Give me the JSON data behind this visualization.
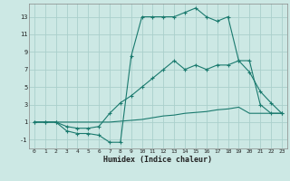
{
  "xlabel": "Humidex (Indice chaleur)",
  "bg_color": "#cce8e4",
  "grid_color": "#aacfcb",
  "line_color": "#1a7a6e",
  "xlim": [
    -0.5,
    23.5
  ],
  "ylim": [
    -2.0,
    14.5
  ],
  "xticks": [
    0,
    1,
    2,
    3,
    4,
    5,
    6,
    7,
    8,
    9,
    10,
    11,
    12,
    13,
    14,
    15,
    16,
    17,
    18,
    19,
    20,
    21,
    22,
    23
  ],
  "yticks": [
    -1,
    1,
    3,
    5,
    7,
    9,
    11,
    13
  ],
  "line1_x": [
    0,
    1,
    2,
    3,
    4,
    5,
    6,
    7,
    8,
    9,
    10,
    11,
    12,
    13,
    14,
    15,
    16,
    17,
    18,
    19,
    20,
    21,
    22,
    23
  ],
  "line1_y": [
    1,
    1,
    1,
    0,
    -0.3,
    -0.3,
    -0.5,
    -1.3,
    -1.3,
    8.5,
    13,
    13,
    13,
    13,
    13.5,
    14,
    13,
    12.5,
    13,
    8,
    8,
    3,
    2,
    2
  ],
  "line2_x": [
    0,
    1,
    2,
    3,
    4,
    5,
    6,
    7,
    8,
    9,
    10,
    11,
    12,
    13,
    14,
    15,
    16,
    17,
    18,
    19,
    20,
    21,
    22,
    23
  ],
  "line2_y": [
    1,
    1,
    1,
    0.5,
    0.3,
    0.3,
    0.5,
    2,
    3.2,
    4,
    5,
    6,
    7,
    8,
    7,
    7.5,
    7,
    7.5,
    7.5,
    8,
    6.7,
    4.5,
    3.2,
    2
  ],
  "line3_x": [
    0,
    1,
    2,
    3,
    4,
    5,
    6,
    7,
    8,
    9,
    10,
    11,
    12,
    13,
    14,
    15,
    16,
    17,
    18,
    19,
    20,
    21,
    22,
    23
  ],
  "line3_y": [
    1,
    1,
    1,
    1,
    1,
    1,
    1,
    1,
    1.1,
    1.2,
    1.3,
    1.5,
    1.7,
    1.8,
    2.0,
    2.1,
    2.2,
    2.4,
    2.5,
    2.7,
    2,
    2,
    2,
    2
  ]
}
